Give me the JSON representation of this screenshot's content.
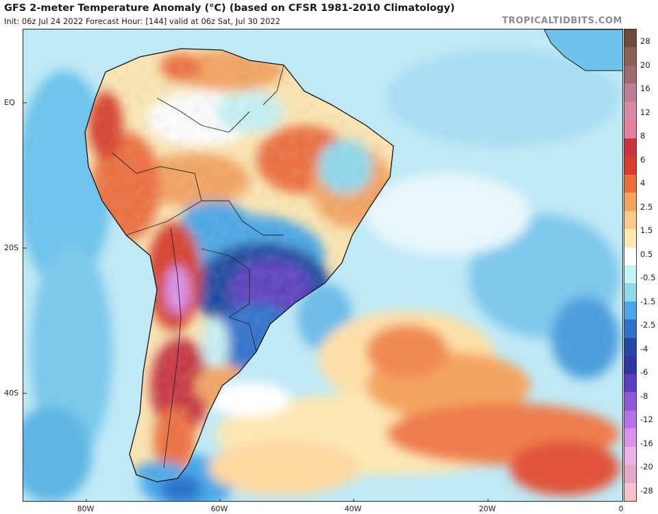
{
  "header": {
    "title": "GFS 2-meter Temperature Anomaly (°C) (based on CFSR 1981-2010 Climatology)",
    "subtitle": "Init: 06z Jul 24 2022   Forecast Hour: [144]   valid at 06z Sat, Jul 30 2022",
    "brand": "TROPICALTIDBITS.COM"
  },
  "axes": {
    "lat_labels": [
      {
        "text": "EQ",
        "lat": 0
      },
      {
        "text": "20S",
        "lat": -20
      },
      {
        "text": "40S",
        "lat": -40
      }
    ],
    "lon_labels": [
      {
        "text": "80W",
        "lon": -80
      },
      {
        "text": "60W",
        "lon": -60
      },
      {
        "text": "40W",
        "lon": -40
      },
      {
        "text": "20W",
        "lon": -20
      },
      {
        "text": "0",
        "lon": 0
      }
    ]
  },
  "colorbar": {
    "labels": [
      "28",
      "20",
      "16",
      "12",
      "8",
      "6",
      "4",
      "2.5",
      "1.5",
      "0.5",
      "-0.5",
      "-1.5",
      "-2.5",
      "-4",
      "-6",
      "-8",
      "-12",
      "-16",
      "-20",
      "-28"
    ],
    "colors": [
      "#6e4a3a",
      "#8b5e55",
      "#a06c72",
      "#bf7d92",
      "#d889a8",
      "#e97f9c",
      "#c8343f",
      "#d8402c",
      "#ee6e3e",
      "#f4a460",
      "#fcc88a",
      "#fde7b2",
      "#ffffff",
      "#c6f2f4",
      "#8fd9ea",
      "#4aa8e6",
      "#2f72cc",
      "#1f4aa0",
      "#2d35a0",
      "#5a3fc0",
      "#8a58d8",
      "#b572e8",
      "#dc90ec",
      "#eeb0e8",
      "#e6a6c8",
      "#f6c2cc"
    ]
  },
  "legend_colors": {
    "ocean_base": "#bfe9f5",
    "warm_strong": "#d8402c",
    "cold_strong": "#2d35a0",
    "coast": "#111111"
  }
}
